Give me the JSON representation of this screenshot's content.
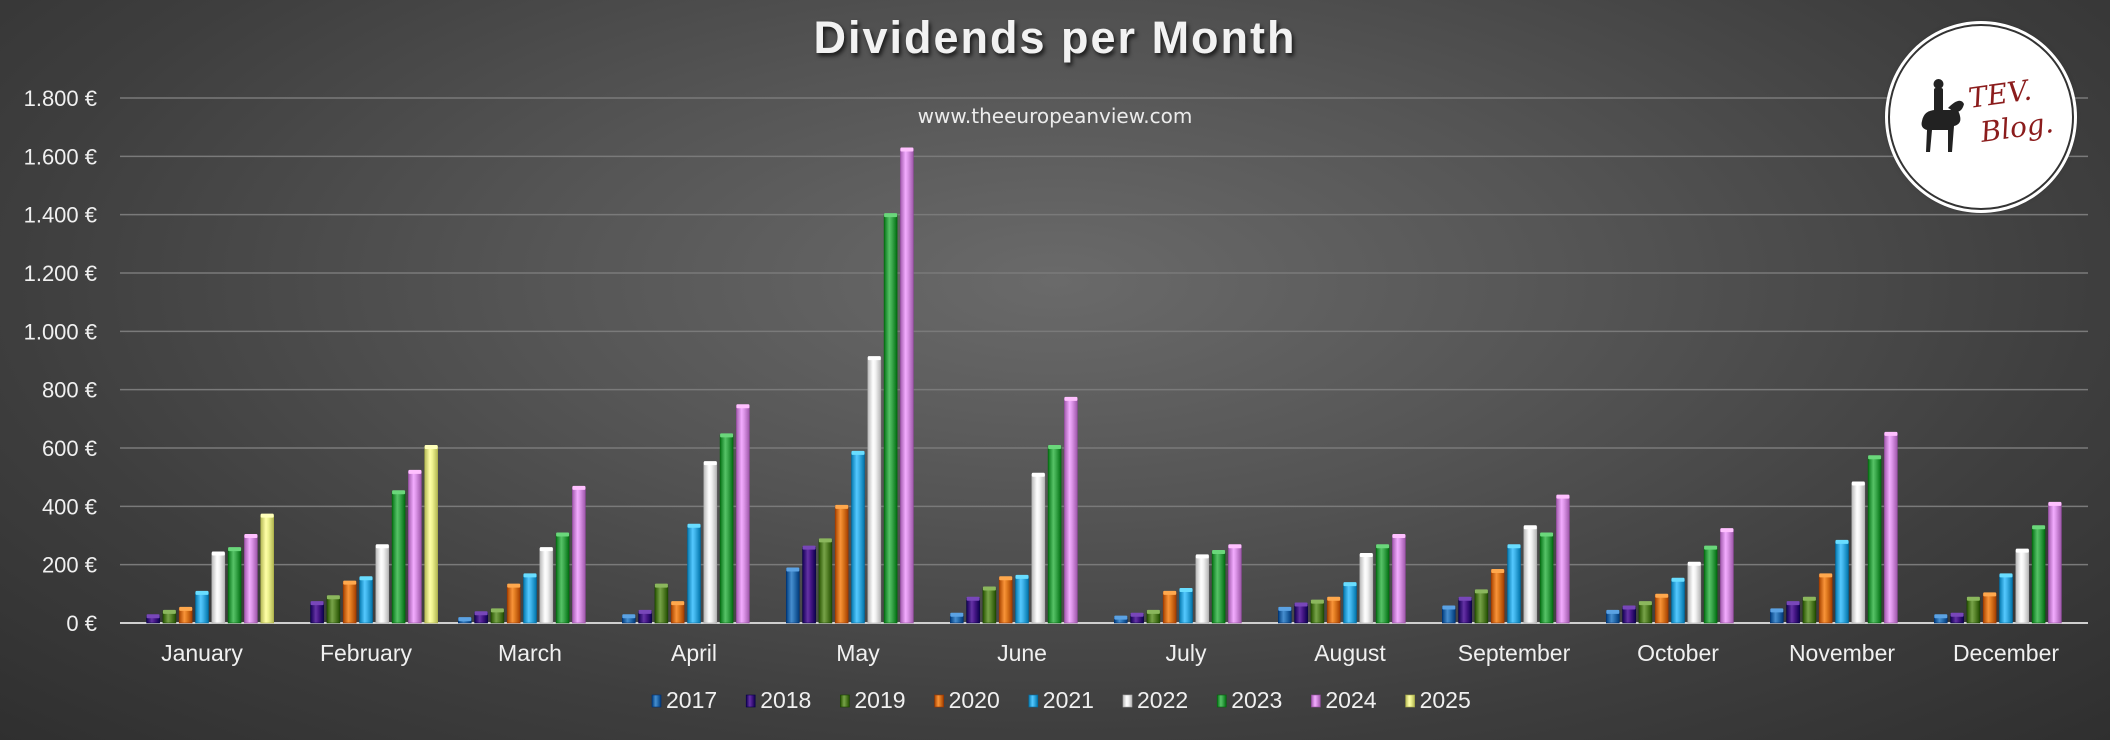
{
  "header": {
    "title": "Dividends per Month",
    "subtitle": "www.theeuropeanview.com"
  },
  "logo": {
    "text_line1": "TEV.",
    "text_line2": "Blog.",
    "icon": "horse-rider-statue-icon"
  },
  "colors": {
    "2017": "#2e75b6",
    "2018": "#4b1a8c",
    "2019": "#5e8a30",
    "2020": "#e07b20",
    "2021": "#3cb0e6",
    "2022": "#f2f2f2",
    "2023": "#3daa4e",
    "2024": "#da93e6",
    "2025": "#eef28e"
  },
  "chart_data": {
    "type": "bar",
    "title": "Dividends per Month",
    "xlabel": "",
    "ylabel": "",
    "ylim": [
      0,
      1800
    ],
    "yticks": [
      0,
      200,
      400,
      600,
      800,
      1000,
      1200,
      1400,
      1600,
      1800
    ],
    "ytick_labels": [
      "0 €",
      "200 €",
      "400 €",
      "600 €",
      "800 €",
      "1.000 €",
      "1.200 €",
      "1.400 €",
      "1.600 €",
      "1.800 €"
    ],
    "grid": true,
    "legend_position": "bottom",
    "categories": [
      "January",
      "February",
      "March",
      "April",
      "May",
      "June",
      "July",
      "August",
      "September",
      "October",
      "November",
      "December"
    ],
    "series": [
      {
        "name": "2017",
        "values": [
          null,
          null,
          15,
          25,
          185,
          30,
          20,
          50,
          55,
          40,
          45,
          25
        ]
      },
      {
        "name": "2018",
        "values": [
          25,
          70,
          35,
          40,
          260,
          85,
          30,
          65,
          85,
          55,
          70,
          30
        ]
      },
      {
        "name": "2019",
        "values": [
          40,
          90,
          45,
          130,
          285,
          120,
          40,
          75,
          110,
          70,
          85,
          85
        ]
      },
      {
        "name": "2020",
        "values": [
          50,
          140,
          130,
          70,
          400,
          155,
          105,
          85,
          180,
          95,
          165,
          100
        ]
      },
      {
        "name": "2021",
        "values": [
          105,
          155,
          165,
          335,
          585,
          160,
          115,
          135,
          265,
          150,
          280,
          165
        ]
      },
      {
        "name": "2022",
        "values": [
          240,
          265,
          255,
          550,
          910,
          510,
          230,
          235,
          330,
          205,
          480,
          250
        ]
      },
      {
        "name": "2023",
        "values": [
          255,
          450,
          305,
          645,
          1400,
          605,
          245,
          265,
          305,
          260,
          570,
          330
        ]
      },
      {
        "name": "2024",
        "values": [
          300,
          520,
          465,
          745,
          1625,
          770,
          265,
          300,
          435,
          320,
          650,
          410
        ]
      },
      {
        "name": "2025",
        "values": [
          370,
          605,
          null,
          null,
          null,
          null,
          null,
          null,
          null,
          null,
          null,
          null
        ]
      }
    ]
  }
}
